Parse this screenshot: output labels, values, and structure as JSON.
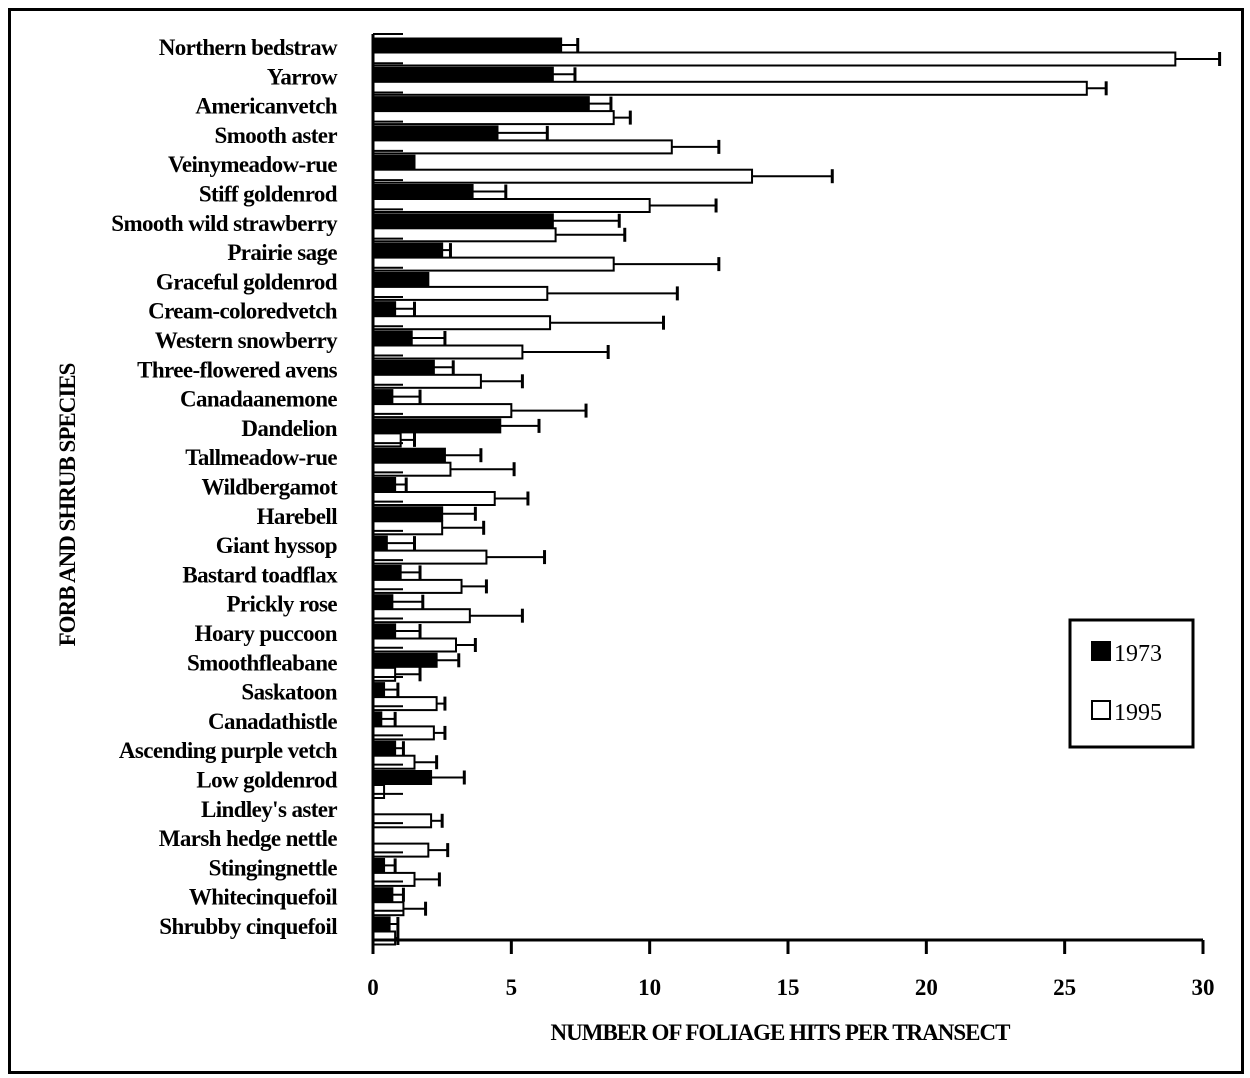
{
  "chart_data": {
    "type": "bar",
    "orientation": "horizontal",
    "xlabel": "NUMBER OF FOLIAGE HITS PER TRANSECT",
    "ylabel": "FORB AND SHRUB SPECIES",
    "xlim": [
      0,
      30
    ],
    "xticks": [
      0,
      5,
      10,
      15,
      20,
      25,
      30
    ],
    "grid": false,
    "legend_position": "right",
    "categories": [
      "Northern bedstraw",
      "Yarrow",
      "Americanvetch",
      "Smooth aster",
      "Veinymeadow-rue",
      "Stiff goldenrod",
      "Smooth wild strawberry",
      "Prairie sage",
      "Graceful goldenrod",
      "Cream-coloredvetch",
      "Western snowberry",
      "Three-flowered avens",
      "Canadaanemone",
      "Dandelion",
      "Tallmeadow-rue",
      "Wildbergamot",
      "Harebell",
      "Giant hyssop",
      "Bastard toadflax",
      "Prickly rose",
      "Hoary puccoon",
      "Smoothfleabane",
      "Saskatoon",
      "Canadathistle",
      "Ascending purple vetch",
      "Low goldenrod",
      "Lindley's aster",
      "Marsh hedge nettle",
      "Stingingnettle",
      "Whitecinquefoil",
      "Shrubby cinquefoil"
    ],
    "series": [
      {
        "name": "1973",
        "color": "#000000",
        "values": [
          6.8,
          6.5,
          7.8,
          4.5,
          1.5,
          3.6,
          6.5,
          2.5,
          2.0,
          0.8,
          1.4,
          2.2,
          0.7,
          4.6,
          2.6,
          0.8,
          2.5,
          0.5,
          1.0,
          0.7,
          0.8,
          2.3,
          0.4,
          0.3,
          0.8,
          2.1,
          0.0,
          0.0,
          0.4,
          0.7,
          0.6
        ],
        "errors": [
          0.6,
          0.8,
          0.8,
          1.8,
          0.0,
          1.2,
          2.4,
          0.3,
          0.0,
          0.7,
          1.2,
          0.7,
          1.0,
          1.4,
          1.3,
          0.4,
          1.2,
          1.0,
          0.7,
          1.1,
          0.9,
          0.8,
          0.5,
          0.5,
          0.3,
          1.2,
          0.0,
          0.0,
          0.4,
          0.4,
          0.3
        ]
      },
      {
        "name": "1995",
        "color": "#ffffff",
        "values": [
          29.0,
          25.8,
          8.7,
          10.8,
          13.7,
          10.0,
          6.6,
          8.7,
          6.3,
          6.4,
          5.4,
          3.9,
          5.0,
          1.0,
          2.8,
          4.4,
          2.5,
          4.1,
          3.2,
          3.5,
          3.0,
          0.8,
          2.3,
          2.2,
          1.5,
          0.4,
          2.1,
          2.0,
          1.5,
          1.1,
          0.8
        ],
        "errors": [
          1.6,
          0.7,
          0.6,
          1.7,
          2.9,
          2.4,
          2.5,
          3.8,
          4.7,
          4.1,
          3.1,
          1.5,
          2.7,
          0.5,
          2.3,
          1.2,
          1.5,
          2.1,
          0.9,
          1.9,
          0.7,
          0.9,
          0.3,
          0.4,
          0.8,
          0.0,
          0.4,
          0.7,
          0.9,
          0.8,
          0.1
        ]
      }
    ]
  }
}
